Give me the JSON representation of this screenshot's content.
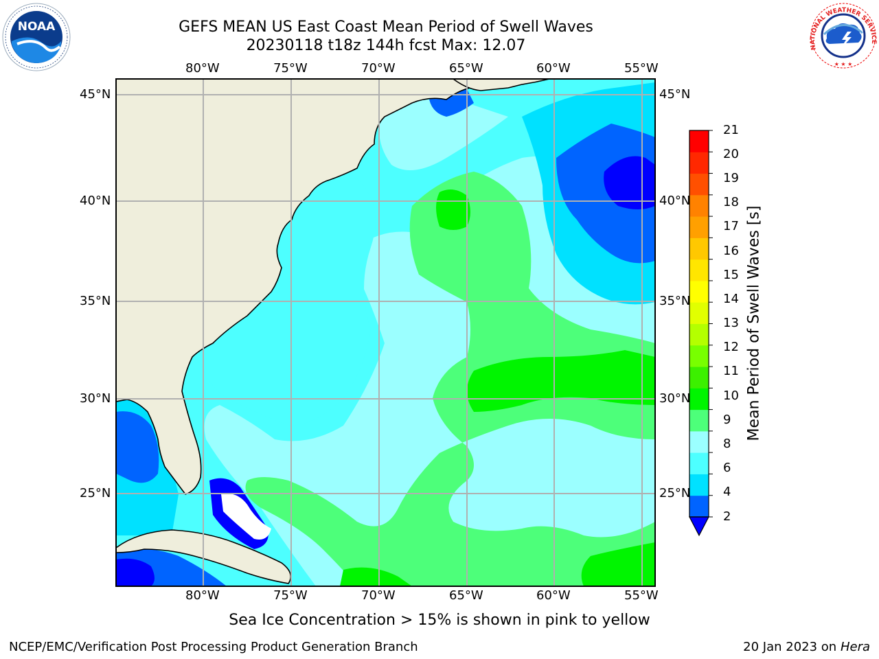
{
  "header": {
    "title_line1": "GEFS MEAN US East Coast Mean Period of Swell Waves",
    "title_line2": "20230118 t18z 144h fcst   Max: 12.07"
  },
  "logos": {
    "left": {
      "icon": "noaa-logo",
      "text": "NOAA",
      "ring_text": "NATIONAL OCEANIC AND ATMOSPHERIC ADMINISTRATION · U.S. DEPARTMENT OF COMMERCE"
    },
    "right": {
      "icon": "nws-logo",
      "ring_text": "NATIONAL WEATHER SERVICE"
    }
  },
  "map": {
    "projection_extent": {
      "lon_min": -85,
      "lon_max": -54.3,
      "lat_min": 20.4,
      "lat_max": 45.8
    },
    "lon_ticks": [
      "80°W",
      "75°W",
      "70°W",
      "65°W",
      "60°W",
      "55°W"
    ],
    "lat_ticks": [
      "45°N",
      "40°N",
      "35°N",
      "30°N",
      "25°N"
    ],
    "land_color": "#efeedc",
    "grid_color": "#b0b0b0"
  },
  "colorbar": {
    "label": "Mean Period of Swell Waves [s]",
    "ticks": [
      "21",
      "20",
      "19",
      "18",
      "17",
      "16",
      "15",
      "14",
      "13",
      "12",
      "11",
      "10",
      "9",
      "8",
      "6",
      "4",
      "2"
    ],
    "colors_bottom_to_top": [
      "#0064ff",
      "#00e1ff",
      "#4dffff",
      "#9bffff",
      "#4dff7a",
      "#00f500",
      "#3cf000",
      "#78ff00",
      "#b4ff00",
      "#e1ff00",
      "#ffff00",
      "#ffe600",
      "#ffc800",
      "#ffa000",
      "#ff8200",
      "#ff5000",
      "#ff2800",
      "#ff0000"
    ],
    "under_color": "#0000ff"
  },
  "caption": "Sea Ice Concentration > 15% is shown in pink to yellow",
  "footer": {
    "left": "NCEP/EMC/Verification Post Processing Product Generation Branch",
    "right_prefix": "20 Jan 2023 on ",
    "right_host": "Hera"
  }
}
